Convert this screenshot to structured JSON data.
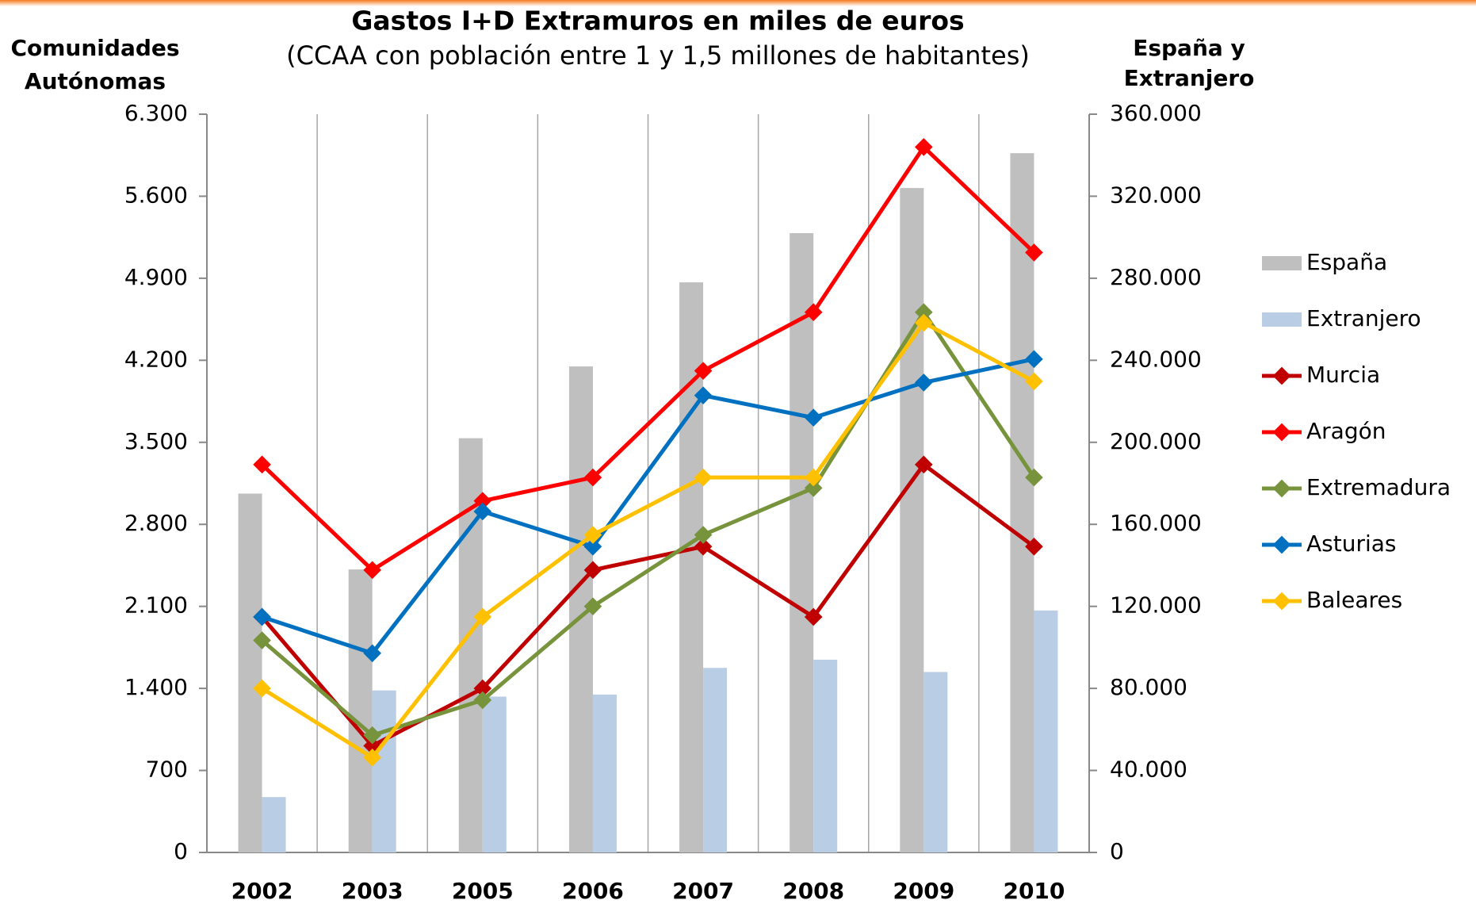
{
  "chart_data": {
    "type": "bar_line",
    "title": "Gastos I+D Extramuros en miles de euros",
    "subtitle": "(CCAA con población entre 1 y 1,5 millones de habitantes)",
    "y_label": [
      "Comunidades",
      "Autónomas"
    ],
    "y2_label": [
      "España y",
      "Extranjero"
    ],
    "categories": [
      "2002",
      "2003",
      "2005",
      "2006",
      "2007",
      "2008",
      "2009",
      "2010"
    ],
    "series": [
      {
        "name": "España",
        "color": "#bfbfbf",
        "kind": "bar",
        "axis": "y2",
        "values": [
          175000,
          138000,
          202000,
          237000,
          278000,
          302000,
          324000,
          341000
        ]
      },
      {
        "name": "Extranjero",
        "color": "#b9cde5",
        "kind": "bar",
        "axis": "y2",
        "values": [
          27000,
          79000,
          76000,
          77000,
          90000,
          94000,
          88000,
          118000
        ]
      },
      {
        "name": "Murcia",
        "color": "#c00000",
        "kind": "line",
        "values": [
          2010,
          910,
          1400,
          2410,
          2610,
          2010,
          3310,
          2610
        ]
      },
      {
        "name": "Aragón",
        "color": "#ff0000",
        "kind": "line",
        "values": [
          3310,
          2410,
          3000,
          3200,
          4110,
          4610,
          6020,
          5120
        ]
      },
      {
        "name": "Extremadura",
        "color": "#77933c",
        "kind": "line",
        "values": [
          1810,
          1000,
          1300,
          2100,
          2710,
          3110,
          4610,
          3200
        ]
      },
      {
        "name": "Asturias",
        "color": "#0070c0",
        "kind": "line",
        "values": [
          2010,
          1700,
          2910,
          2610,
          3900,
          3710,
          4010,
          4210
        ]
      },
      {
        "name": "Baleares",
        "color": "#ffc000",
        "kind": "line",
        "values": [
          1400,
          810,
          2010,
          2710,
          3200,
          3200,
          4520,
          4020
        ]
      }
    ],
    "ylim": [
      0,
      6300
    ],
    "yticks": [
      0,
      700,
      {
        "value": 1400,
        "label": "1.400"
      },
      {
        "value": 2100,
        "label": "2.100"
      },
      {
        "value": 2800,
        "label": "2.800"
      },
      {
        "value": 3500,
        "label": "3.500"
      },
      {
        "value": 4200,
        "label": "4.200"
      },
      {
        "value": 4900,
        "label": "4.900"
      },
      {
        "value": 5600,
        "label": "5.600"
      },
      {
        "value": 6300,
        "label": "6.300"
      }
    ],
    "y2lim": [
      0,
      360000
    ],
    "y2ticks": [
      0,
      {
        "value": 40000,
        "label": "40.000"
      },
      {
        "value": 80000,
        "label": "80.000"
      },
      {
        "value": 120000,
        "label": "120.000"
      },
      {
        "value": 160000,
        "label": "160.000"
      },
      {
        "value": 200000,
        "label": "200.000"
      },
      {
        "value": 240000,
        "label": "240.000"
      },
      {
        "value": 280000,
        "label": "280.000"
      },
      {
        "value": 320000,
        "label": "320.000"
      },
      {
        "value": 360000,
        "label": "360.000"
      }
    ],
    "legend": "right"
  }
}
